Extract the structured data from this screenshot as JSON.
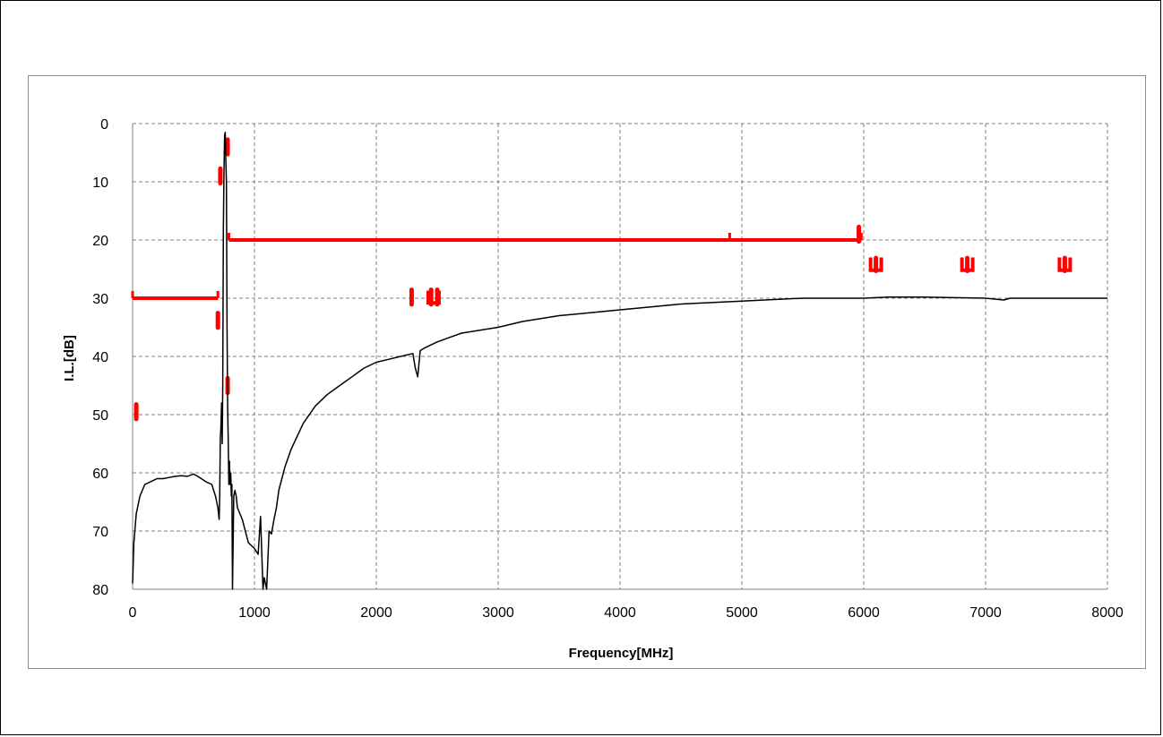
{
  "chart_data": {
    "type": "line",
    "title": "",
    "xlabel": "Frequency[MHz]",
    "ylabel": "I.L.[dB]",
    "xlim": [
      0,
      8000
    ],
    "ylim": [
      0,
      80
    ],
    "y_inverted": true,
    "grid": "dashed",
    "x_ticks": [
      0,
      1000,
      2000,
      3000,
      4000,
      5000,
      6000,
      7000,
      8000
    ],
    "y_ticks": [
      0,
      10,
      20,
      30,
      40,
      50,
      60,
      70,
      80
    ],
    "colors": {
      "response": "#000000",
      "spec": "#ff0000",
      "grid": "#808080"
    },
    "series": [
      {
        "x": [
          0,
          10,
          30,
          60,
          100,
          150,
          200,
          250,
          300,
          350,
          400,
          450,
          500,
          550,
          600,
          650,
          680,
          700,
          710,
          715,
          720,
          725,
          730,
          735,
          740,
          745,
          750,
          755,
          760,
          765,
          770,
          775,
          780,
          785,
          790,
          795,
          800,
          805,
          810,
          815,
          820,
          830,
          840,
          850,
          860,
          880,
          900,
          950,
          1000,
          1030,
          1050,
          1070,
          1080,
          1100,
          1120,
          1140,
          1160,
          1180,
          1200,
          1250,
          1300,
          1400,
          1500,
          1600,
          1700,
          1800,
          1900,
          2000,
          2100,
          2200,
          2300,
          2320,
          2340,
          2360,
          2400,
          2500,
          2700,
          3000,
          3200,
          3500,
          4000,
          4500,
          5000,
          5300,
          5500,
          6000,
          6200,
          6500,
          7000,
          7150,
          7200,
          7500,
          8000
        ],
        "values": [
          79,
          72,
          67,
          64,
          62,
          61.5,
          61,
          61,
          60.8,
          60.6,
          60.5,
          60.6,
          60.2,
          60.8,
          61.5,
          62,
          64,
          66,
          68,
          64,
          54,
          52,
          48,
          55,
          45,
          18,
          8,
          2,
          1.5,
          6,
          10,
          35,
          49,
          55,
          62,
          58,
          62,
          60,
          64,
          62,
          80,
          64,
          63,
          64,
          66,
          67,
          68,
          72,
          73,
          74,
          67.5,
          80,
          78,
          80,
          70,
          70.5,
          68,
          66,
          63,
          59,
          56,
          51.5,
          48.5,
          46.5,
          45,
          43.5,
          42,
          41,
          40.5,
          40,
          39.5,
          42,
          43.5,
          39,
          38.5,
          37.5,
          36,
          35,
          34,
          33,
          32,
          31,
          30.5,
          30.2,
          30,
          30,
          29.8,
          29.8,
          30,
          30.3,
          30,
          30,
          30
        ]
      }
    ],
    "spec_limits": [
      {
        "x": [
          0,
          700
        ],
        "y": [
          30,
          30
        ]
      },
      {
        "x": [
          790,
          5980
        ],
        "y": [
          20,
          20
        ]
      }
    ],
    "spec_markers": [
      {
        "x": 30,
        "y": 49.5,
        "h": 2.5
      },
      {
        "x": 700,
        "y": 33.8,
        "h": 2.5
      },
      {
        "x": 720,
        "y": 9,
        "h": 2.5
      },
      {
        "x": 780,
        "y": 4,
        "h": 2.5
      },
      {
        "x": 780,
        "y": 45,
        "h": 2.5
      },
      {
        "x": 2290,
        "y": 29.8,
        "h": 2.5
      },
      {
        "x": 2450,
        "y": 29.8,
        "h": 2.5
      },
      {
        "x": 2500,
        "y": 29.8,
        "h": 2.5
      },
      {
        "x": 5960,
        "y": 19,
        "h": 2.5
      },
      {
        "x": 6100,
        "y": 24.2,
        "h": 2.2
      },
      {
        "x": 6850,
        "y": 24.2,
        "h": 2.2
      },
      {
        "x": 7650,
        "y": 24.2,
        "h": 2.2
      }
    ]
  }
}
